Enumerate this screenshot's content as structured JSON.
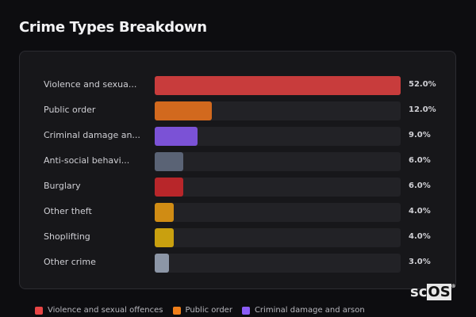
{
  "title": "Crime Types Breakdown",
  "chart_data": {
    "type": "bar",
    "orientation": "horizontal",
    "title": "Crime Types Breakdown",
    "categories": [
      "Violence and sexua...",
      "Public order",
      "Criminal damage an...",
      "Anti-social behavi...",
      "Burglary",
      "Other theft",
      "Shoplifting",
      "Other crime"
    ],
    "values": [
      52.0,
      12.0,
      9.0,
      6.0,
      6.0,
      4.0,
      4.0,
      3.0
    ],
    "value_labels": [
      "52.0%",
      "12.0%",
      "9.0%",
      "6.0%",
      "6.0%",
      "4.0%",
      "4.0%",
      "3.0%"
    ],
    "colors": [
      "#c83c3c",
      "#d2691e",
      "#7b52d6",
      "#5a6375",
      "#b8262a",
      "#d08c14",
      "#c9a00f",
      "#8c96a6"
    ],
    "xlim": [
      0,
      52
    ],
    "grid": false,
    "legend_position": "bottom",
    "legend": [
      {
        "label": "Violence and sexual offences",
        "color": "#e84545"
      },
      {
        "label": "Public order",
        "color": "#f07f1a"
      },
      {
        "label": "Criminal damage and arson",
        "color": "#8b5cf6"
      }
    ]
  },
  "logo": {
    "text_sc": "sc",
    "text_os": "OS",
    "mark": "®"
  }
}
